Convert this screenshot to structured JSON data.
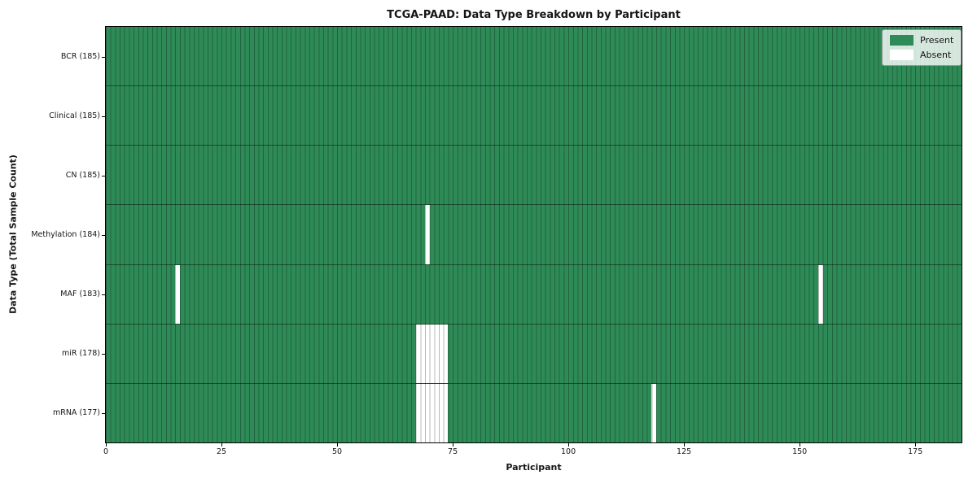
{
  "chart_data": {
    "type": "heatmap",
    "title": "TCGA-PAAD: Data Type Breakdown by Participant",
    "xlabel": "Participant",
    "ylabel": "Data Type (Total Sample Count)",
    "x_range": [
      0,
      185
    ],
    "x_ticks": [
      0,
      25,
      50,
      75,
      100,
      125,
      150,
      175
    ],
    "n_participants": 185,
    "rows": [
      {
        "name": "BCR",
        "label": "BCR (185)",
        "present_count": 185,
        "absent_participants": []
      },
      {
        "name": "Clinical",
        "label": "Clinical (185)",
        "present_count": 185,
        "absent_participants": []
      },
      {
        "name": "CN",
        "label": "CN (185)",
        "present_count": 185,
        "absent_participants": []
      },
      {
        "name": "Methylation",
        "label": "Methylation (184)",
        "present_count": 184,
        "absent_participants": [
          69
        ]
      },
      {
        "name": "MAF",
        "label": "MAF (183)",
        "present_count": 183,
        "absent_participants": [
          15,
          154
        ]
      },
      {
        "name": "miR",
        "label": "miR (178)",
        "present_count": 178,
        "absent_participants": [
          67,
          68,
          69,
          70,
          71,
          72,
          73
        ]
      },
      {
        "name": "mRNA",
        "label": "mRNA (177)",
        "present_count": 177,
        "absent_participants": [
          67,
          68,
          69,
          70,
          71,
          72,
          73,
          118
        ]
      }
    ],
    "legend": [
      {
        "label": "Present",
        "color": "#2e8b57"
      },
      {
        "label": "Absent",
        "color": "#ffffff"
      }
    ],
    "legend_position": "upper right",
    "grid": true,
    "colors": {
      "present": "#2e8b57",
      "absent": "#ffffff",
      "grid_line": "rgba(0,0,0,0.28)",
      "row_divider": "rgba(0,0,0,0.45)",
      "spine": "#000000",
      "legend_border": "#999999"
    }
  }
}
